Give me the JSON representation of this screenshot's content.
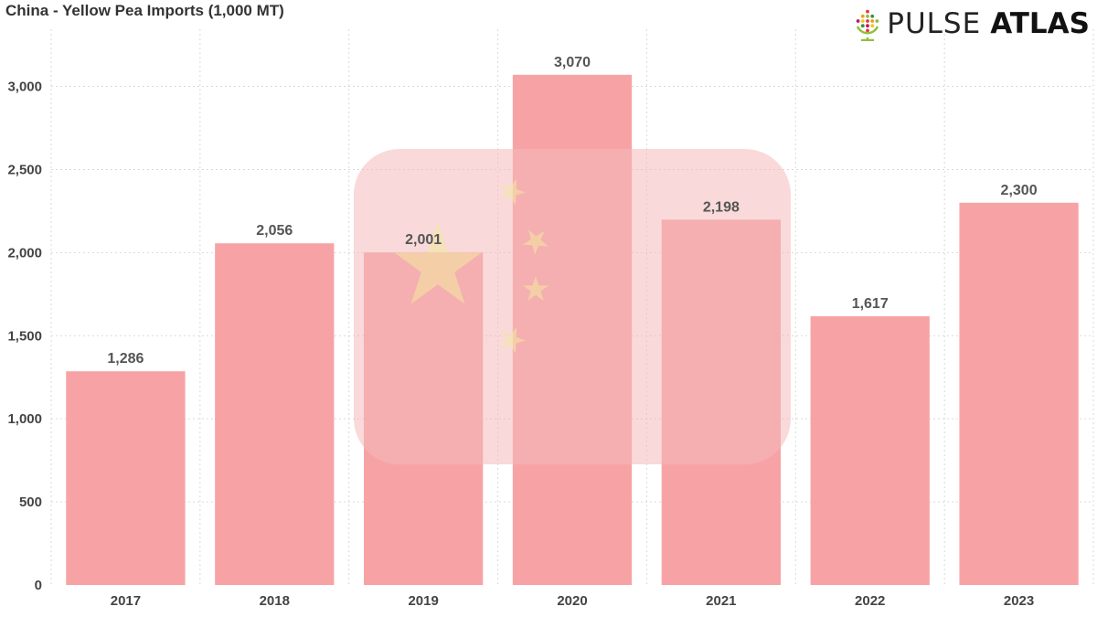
{
  "title": "China - Yellow Pea Imports (1,000 MT)",
  "logo": {
    "text_light": "PULSE",
    "text_bold": "ATLAS",
    "icon": "globe-icon"
  },
  "colors": {
    "bar": "#f7a3a5",
    "flag_red": "#f4b9ba",
    "flag_star": "#f3e7a0",
    "grid": "#d9d9d9",
    "text": "#444444"
  },
  "chart_data": {
    "type": "bar",
    "title": "China - Yellow Pea Imports (1,000 MT)",
    "xlabel": "",
    "ylabel": "",
    "categories": [
      "2017",
      "2018",
      "2019",
      "2020",
      "2021",
      "2022",
      "2023"
    ],
    "values": [
      1286,
      2056,
      2001,
      3070,
      2198,
      1617,
      2300
    ],
    "value_labels": [
      "1,286",
      "2,056",
      "2,001",
      "3,070",
      "2,198",
      "1,617",
      "2,300"
    ],
    "ylim": [
      0,
      3300
    ],
    "yticks": [
      0,
      500,
      1000,
      1500,
      2000,
      2500,
      3000
    ],
    "ytick_labels": [
      "0",
      "500",
      "1,000",
      "1,500",
      "2,000",
      "2,500",
      "3,000"
    ],
    "grid": true,
    "grid_style": "dotted",
    "legend": "none",
    "background_image": "china-flag-icon"
  }
}
